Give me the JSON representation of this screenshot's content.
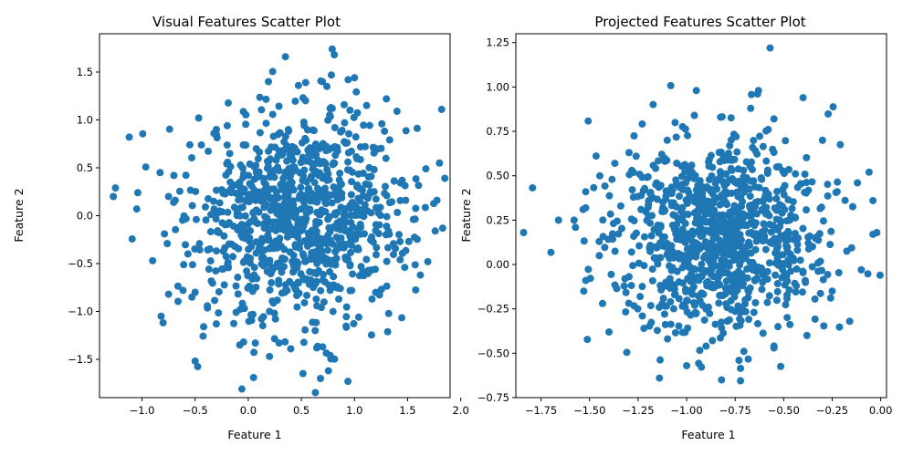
{
  "chart_data": [
    {
      "type": "scatter",
      "title": "Visual Features Scatter Plot",
      "xlabel": "Feature 1",
      "ylabel": "Feature 2",
      "xlim": [
        -1.4,
        1.9
      ],
      "ylim": [
        -1.9,
        1.9
      ],
      "xticks": [
        -1.0,
        -0.5,
        0.0,
        0.5,
        1.0,
        1.5,
        2.0
      ],
      "xtick_labels": [
        "−1.0",
        "−0.5",
        "0.0",
        "0.5",
        "1.0",
        "1.5",
        "2.0"
      ],
      "yticks": [
        -1.5,
        -1.0,
        -0.5,
        0.0,
        0.5,
        1.0,
        1.5
      ],
      "ytick_labels": [
        "−1.5",
        "−1.0",
        "−0.5",
        "0.0",
        "0.5",
        "1.0",
        "1.5"
      ],
      "grid": false,
      "color": "#1f77b4",
      "point_count": 1000,
      "distribution": {
        "mean_x": 0.5,
        "std_x": 0.5,
        "mean_y": 0.0,
        "std_y": 0.55
      },
      "sampled_points_note": "Dense Gaussian-like cloud centred near (0.5, 0.0)",
      "points": [
        [
          -1.25,
          0.29
        ],
        [
          -1.27,
          0.2
        ],
        [
          -1.12,
          0.82
        ],
        [
          -1.04,
          0.24
        ],
        [
          -1.05,
          0.07
        ],
        [
          -0.9,
          -0.47
        ],
        [
          -0.83,
          0.45
        ],
        [
          -0.82,
          -1.05
        ],
        [
          -0.75,
          -0.82
        ],
        [
          -0.75,
          0.2
        ],
        [
          -0.7,
          0.42
        ],
        [
          -0.55,
          0.74
        ],
        [
          -0.53,
          -0.85
        ],
        [
          -0.42,
          -1.16
        ],
        [
          -0.3,
          -1.13
        ],
        [
          -0.08,
          -1.35
        ],
        [
          -0.06,
          -1.81
        ],
        [
          0.05,
          -1.69
        ],
        [
          0.2,
          -1.47
        ],
        [
          0.29,
          -1.33
        ],
        [
          0.4,
          -1.39
        ],
        [
          0.68,
          -1.7
        ],
        [
          0.7,
          -1.37
        ],
        [
          0.79,
          1.74
        ],
        [
          0.81,
          1.68
        ],
        [
          0.35,
          1.66
        ],
        [
          0.19,
          1.4
        ],
        [
          0.54,
          1.39
        ],
        [
          0.94,
          1.42
        ],
        [
          1.0,
          1.44
        ],
        [
          1.3,
          1.22
        ],
        [
          1.4,
          1.09
        ],
        [
          1.82,
          1.11
        ],
        [
          1.8,
          0.55
        ],
        [
          1.85,
          0.39
        ],
        [
          1.76,
          -0.16
        ],
        [
          1.83,
          -0.13
        ],
        [
          1.62,
          -0.62
        ],
        [
          1.43,
          -0.46
        ],
        [
          1.69,
          -0.48
        ],
        [
          1.04,
          -1.06
        ],
        [
          0.63,
          -1.2
        ],
        [
          0.2,
          -1.0
        ],
        [
          -0.5,
          -0.8
        ],
        [
          -0.3,
          0.9
        ]
      ]
    },
    {
      "type": "scatter",
      "title": "Projected Features Scatter Plot",
      "xlabel": "Feature 1",
      "ylabel": "Feature 2",
      "xlim": [
        -1.88,
        0.03
      ],
      "ylim": [
        -0.75,
        1.3
      ],
      "xticks": [
        -1.75,
        -1.5,
        -1.25,
        -1.0,
        -0.75,
        -0.5,
        -0.25,
        0.0
      ],
      "xtick_labels": [
        "−1.75",
        "−1.50",
        "−1.25",
        "−1.00",
        "−0.75",
        "−0.50",
        "−0.25",
        "0.00"
      ],
      "yticks": [
        -0.75,
        -0.5,
        -0.25,
        0.0,
        0.25,
        0.5,
        0.75,
        1.0,
        1.25
      ],
      "ytick_labels": [
        "−0.75",
        "−0.50",
        "−0.25",
        "0.00",
        "0.25",
        "0.50",
        "0.75",
        "1.00",
        "1.25"
      ],
      "grid": false,
      "color": "#1f77b4",
      "point_count": 1000,
      "distribution": {
        "mean_x": -0.82,
        "std_x": 0.27,
        "mean_y": 0.17,
        "std_y": 0.27
      },
      "sampled_points_note": "Dense Gaussian-like cloud centred near (-0.82, 0.17)",
      "points": [
        [
          -1.84,
          0.18
        ],
        [
          -1.66,
          0.25
        ],
        [
          -1.58,
          0.25
        ],
        [
          -1.52,
          0.41
        ],
        [
          -1.52,
          -0.09
        ],
        [
          -1.53,
          -0.15
        ],
        [
          -1.45,
          0.05
        ],
        [
          -1.4,
          -0.38
        ],
        [
          -1.37,
          0.57
        ],
        [
          -1.26,
          0.61
        ],
        [
          -1.22,
          -0.36
        ],
        [
          -1.14,
          -0.64
        ],
        [
          -1.0,
          -0.57
        ],
        [
          -0.95,
          0.98
        ],
        [
          -0.96,
          0.84
        ],
        [
          -0.82,
          -0.65
        ],
        [
          -0.73,
          -0.54
        ],
        [
          -0.67,
          0.88
        ],
        [
          -0.63,
          0.98
        ],
        [
          -0.57,
          1.22
        ],
        [
          -0.55,
          0.82
        ],
        [
          -0.4,
          0.94
        ],
        [
          -0.3,
          0.7
        ],
        [
          -0.16,
          -0.32
        ],
        [
          -0.12,
          0.46
        ],
        [
          -0.06,
          0.52
        ],
        [
          -0.04,
          0.36
        ],
        [
          -0.04,
          0.17
        ],
        [
          -0.02,
          0.18
        ],
        [
          -0.1,
          -0.03
        ],
        [
          -0.25,
          -0.15
        ],
        [
          -0.38,
          -0.4
        ],
        [
          -0.55,
          -0.47
        ],
        [
          -0.9,
          -0.46
        ],
        [
          -1.1,
          0.7
        ]
      ]
    }
  ]
}
